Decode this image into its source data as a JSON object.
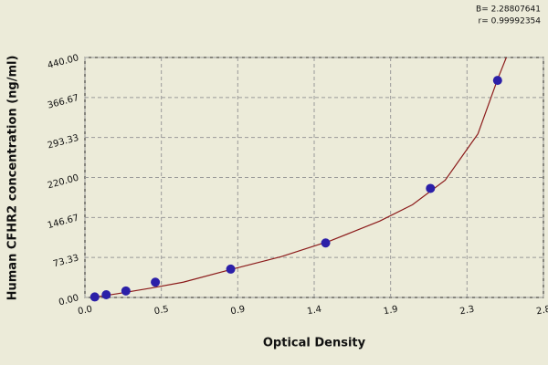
{
  "chart_data": {
    "type": "scatter",
    "x_label": "Optical Density",
    "y_label": "Human CFHR2 concentration (ng/ml)",
    "annotations": [
      "B= 2.28807641",
      "r= 0.99992354"
    ],
    "xlim": [
      0,
      2.8
    ],
    "xticks": [
      {
        "value": 0,
        "label": "0.0"
      },
      {
        "value": 0.4667,
        "label": "0.5"
      },
      {
        "value": 0.9333,
        "label": "0.9"
      },
      1.4,
      {
        "value": 1.8667,
        "label": "1.9"
      },
      {
        "value": 2.3333,
        "label": "2.3"
      },
      2.8
    ],
    "ylim": [
      0,
      440
    ],
    "yticks": [
      {
        "value": 0,
        "label": "0.00"
      },
      73.33,
      146.67,
      {
        "value": 220,
        "label": "220.00"
      },
      293.33,
      366.67,
      {
        "value": 440,
        "label": "440.00"
      }
    ],
    "grid": true,
    "points": {
      "color": "#2b1fa8",
      "x": [
        0.06,
        0.13,
        0.25,
        0.43,
        0.89,
        1.47,
        2.11,
        2.52
      ],
      "values": [
        1,
        5,
        12,
        28,
        52,
        100,
        200,
        398
      ]
    },
    "curve": {
      "color": "#8b1a1a",
      "x": [
        0.05,
        0.2,
        0.4,
        0.6,
        0.9,
        1.2,
        1.5,
        1.8,
        2.0,
        2.2,
        2.4,
        2.52,
        2.58
      ],
      "values": [
        0,
        7,
        17,
        28,
        52,
        75,
        104,
        140,
        170,
        215,
        300,
        400,
        445
      ]
    }
  }
}
